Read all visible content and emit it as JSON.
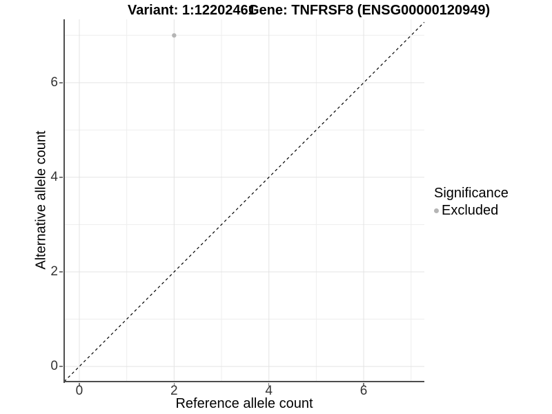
{
  "header": {
    "variant_title": "Variant: 1:12202461",
    "gene_title": "Gene: TNFRSF8 (ENSG00000120949)"
  },
  "chart_data": {
    "type": "scatter",
    "title": "Variant: 1:12202461  |  Gene: TNFRSF8 (ENSG00000120949)",
    "xlabel": "Reference allele count",
    "ylabel": "Alternative allele count",
    "x_domain": [
      -0.32,
      7.28
    ],
    "y_domain": [
      -0.32,
      7.34
    ],
    "x_ticks": [
      0,
      2,
      4,
      6
    ],
    "y_ticks": [
      0,
      2,
      4,
      6
    ],
    "grid": {
      "major_lines": [
        0,
        2,
        4,
        6
      ],
      "minor_lines": [
        1,
        3,
        5,
        7
      ]
    },
    "series": [
      {
        "name": "Excluded",
        "points": [
          {
            "x": 2,
            "y": 7
          }
        ],
        "color": "#b5b5b5"
      }
    ],
    "reference_line": {
      "type": "identity",
      "slope": 1,
      "intercept": 0,
      "style": "dashed",
      "color": "#000000"
    },
    "legend": {
      "title": "Significance",
      "position": "right",
      "items": [
        {
          "label": "Excluded",
          "color": "#b5b5b5"
        }
      ]
    },
    "colors": {
      "grid_major": "#e3e3e3",
      "grid_minor": "#eeeeee",
      "axis_line": "#4d4d4d",
      "tick_mark": "#777777",
      "point": "#b5b5b5"
    }
  }
}
